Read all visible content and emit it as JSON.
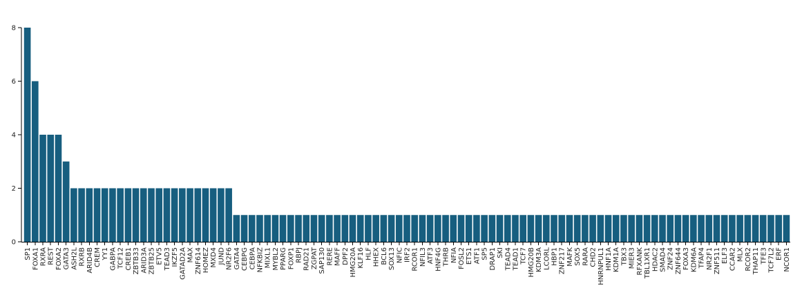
{
  "colors": {
    "bar": "#175e7f",
    "axis": "#000000",
    "background": "#ffffff"
  },
  "chart_data": {
    "type": "bar",
    "title": "",
    "xlabel": "",
    "ylabel": "",
    "ylim": [
      0,
      8
    ],
    "yticks": [
      "0",
      "2",
      "4",
      "6",
      "8"
    ],
    "grid": false,
    "categories": [
      "SP1",
      "FOXA1",
      "RXRA",
      "REST",
      "FOXA2",
      "GATA3",
      "ASH2L",
      "RXRB",
      "ARID4B",
      "CREM",
      "YY1",
      "GABPA",
      "TCF12",
      "CREB1",
      "ZBTB33",
      "ARID3A",
      "ZBTB25",
      "ETV5",
      "TEAD3",
      "IKZF5",
      "GATAD2A",
      "MAX",
      "ZNF614",
      "HOMEZ",
      "MXD4",
      "JUND",
      "NR2F6",
      "GATA4",
      "CEBPG",
      "CEBPA",
      "NFKBIZ",
      "MIXL1",
      "MYBL2",
      "PPARG",
      "FOXP1",
      "RBPJ",
      "RAD21",
      "ZGPAT",
      "SAP130",
      "RERE",
      "MAFF",
      "DPF2",
      "HMG20A",
      "KLF16",
      "HLF",
      "HHEX",
      "BCL6",
      "SOX13",
      "NFIC",
      "IRF2",
      "RCOR1",
      "NFIL3",
      "ATF3",
      "HNF4G",
      "THRB",
      "NFIA",
      "FOSL2",
      "ETS1",
      "ATF1",
      "SP5",
      "DRAP1",
      "SKI",
      "TEAD4",
      "TEAD1",
      "TCF7",
      "HMG20B",
      "KDM3A",
      "LCORL",
      "HBP1",
      "ZNF217",
      "MAFK",
      "SOX5",
      "RARA",
      "CHD2",
      "HNRNPUL1",
      "HNF1A",
      "KDM1A",
      "TBX3",
      "MIER3",
      "RFXANK",
      "TBL1XR1",
      "HDAC2",
      "SMAD4",
      "ZNF24",
      "ZNF644",
      "FOXA3",
      "KDM6A",
      "TFAP4",
      "NR2F1",
      "ZNF511",
      "ELF3",
      "CCAR2",
      "MLX",
      "RCOR2",
      "THAP11",
      "TFE3",
      "TCF7L2",
      "ERF",
      "NCOR1"
    ],
    "values": [
      8,
      6,
      4,
      4,
      4,
      3,
      2,
      2,
      2,
      2,
      2,
      2,
      2,
      2,
      2,
      2,
      2,
      2,
      2,
      2,
      2,
      2,
      2,
      2,
      2,
      2,
      2,
      1,
      1,
      1,
      1,
      1,
      1,
      1,
      1,
      1,
      1,
      1,
      1,
      1,
      1,
      1,
      1,
      1,
      1,
      1,
      1,
      1,
      1,
      1,
      1,
      1,
      1,
      1,
      1,
      1,
      1,
      1,
      1,
      1,
      1,
      1,
      1,
      1,
      1,
      1,
      1,
      1,
      1,
      1,
      1,
      1,
      1,
      1,
      1,
      1,
      1,
      1,
      1,
      1,
      1,
      1,
      1,
      1,
      1,
      1,
      1,
      1,
      1,
      1,
      1,
      1,
      1,
      1,
      1,
      1,
      1,
      1,
      1
    ]
  }
}
